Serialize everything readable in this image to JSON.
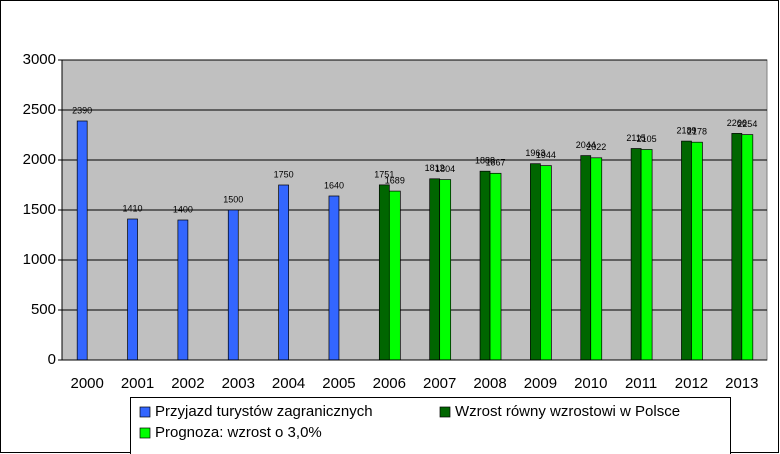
{
  "chart_data": {
    "type": "bar",
    "categories": [
      "2000",
      "2001",
      "2002",
      "2003",
      "2004",
      "2005",
      "2006",
      "2007",
      "2008",
      "2009",
      "2010",
      "2011",
      "2012",
      "2013"
    ],
    "series": [
      {
        "name": "Przyjazd turystów zagranicznych",
        "color": "#3366ff",
        "values": [
          2390,
          1410,
          1400,
          1500,
          1750,
          1640,
          null,
          null,
          null,
          null,
          null,
          null,
          null,
          null
        ]
      },
      {
        "name": "Wzrost równy wzrostowi w Polsce",
        "color": "#006600",
        "values": [
          null,
          null,
          null,
          null,
          null,
          null,
          1751,
          1812,
          1888,
          1963,
          2044,
          2115,
          2189,
          2266
        ]
      },
      {
        "name": "Prognoza: wzrost o 3,0%",
        "color": "#00ff00",
        "values": [
          null,
          null,
          null,
          null,
          null,
          null,
          1689,
          1804,
          1867,
          1944,
          2022,
          2105,
          2178,
          2254
        ]
      }
    ],
    "ylim": [
      0,
      3000
    ],
    "yticks": [
      0,
      500,
      1000,
      1500,
      2000,
      2500,
      3000
    ],
    "grid": true,
    "legend": "bottom"
  }
}
